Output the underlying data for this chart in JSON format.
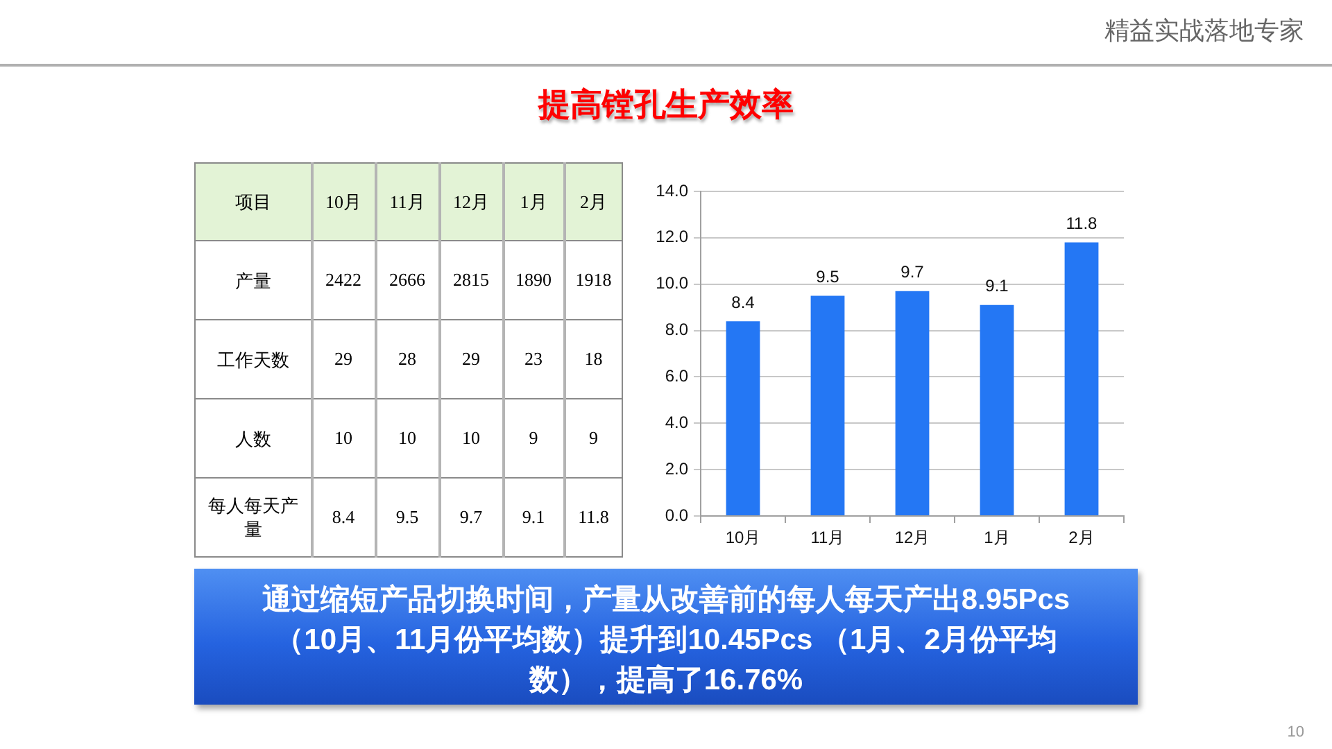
{
  "chart_data": [
    {
      "type": "other",
      "legend_title": "项目",
      "categories": [
        "10月",
        "11月",
        "12月",
        "1月",
        "2月"
      ],
      "series": [
        {
          "name": "产量",
          "values": [
            2422,
            2666,
            2815,
            1890,
            1918
          ]
        },
        {
          "name": "工作天数",
          "values": [
            29,
            28,
            29,
            23,
            18
          ]
        },
        {
          "name": "人数",
          "values": [
            10,
            10,
            10,
            9,
            9
          ]
        },
        {
          "name": "每人每天产量",
          "values": [
            8.4,
            9.5,
            9.7,
            9.1,
            11.8
          ]
        }
      ],
      "data_labels": true
    },
    {
      "type": "bar",
      "title": "提高镗孔生产效率",
      "categories": [
        "10月",
        "11月",
        "12月",
        "1月",
        "2月"
      ],
      "values": [
        8.4,
        9.5,
        9.7,
        9.1,
        11.8
      ],
      "color": "#2477f4",
      "ylim": [
        0,
        14
      ],
      "yticks": [
        {
          "value": 0,
          "label": "0.0"
        },
        {
          "value": 2,
          "label": "2.0"
        },
        {
          "value": 4,
          "label": "4.0"
        },
        {
          "value": 6,
          "label": "6.0"
        },
        {
          "value": 8,
          "label": "8.0"
        },
        {
          "value": 10,
          "label": "10.0"
        },
        {
          "value": 12,
          "label": "12.0"
        },
        {
          "value": 14,
          "label": "14.0"
        }
      ],
      "grid": "y",
      "data_labels": true,
      "annotations": [
        "精益实战落地专家",
        "通过缩短产品切换时间，产量从改善前的每人每天产出8.95Pcs（10月、11月份平均数）提升到10.45Pcs （1月、2月份平均数），提高了16.76%",
        "10"
      ]
    }
  ]
}
